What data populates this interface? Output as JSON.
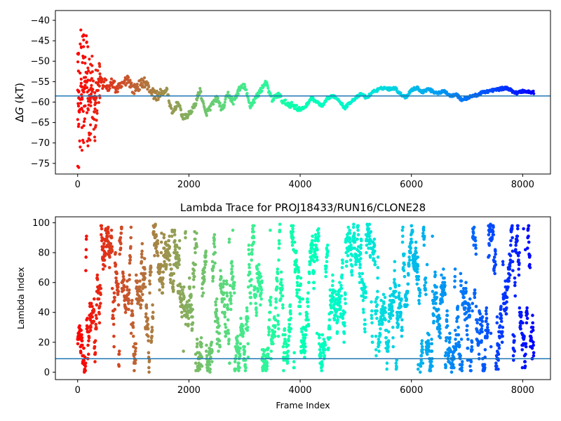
{
  "chart_data": [
    {
      "type": "scatter",
      "title": "",
      "xlabel": "",
      "ylabel": "ΔG (kT)",
      "ylabel_parts": {
        "delta": "Δ",
        "italic": "G",
        "unit": " (kT)"
      },
      "xlim": [
        -400,
        8500
      ],
      "ylim": [
        -77.6,
        -37.6
      ],
      "xticks": [
        0,
        2000,
        4000,
        6000,
        8000
      ],
      "xtick_labels": [
        "0",
        "2000",
        "4000",
        "6000",
        "8000"
      ],
      "yticks": [
        -40,
        -45,
        -50,
        -55,
        -60,
        -65,
        -70,
        -75
      ],
      "ytick_labels": [
        "−40",
        "−45",
        "−50",
        "−55",
        "−60",
        "−65",
        "−70",
        "−75"
      ],
      "hline": {
        "y": -58.5,
        "color": "#1f77b4"
      },
      "colormap": "rainbow (red at frame 0 to violet at frame 8200)",
      "frame_count": 8200,
      "trace_points": [
        [
          0,
          -58
        ],
        [
          30,
          -64
        ],
        [
          60,
          -55
        ],
        [
          100,
          -58
        ],
        [
          150,
          -54
        ],
        [
          200,
          -60
        ],
        [
          260,
          -56
        ],
        [
          300,
          -62
        ],
        [
          350,
          -57
        ],
        [
          400,
          -53
        ],
        [
          450,
          -56
        ],
        [
          500,
          -55
        ],
        [
          560,
          -57
        ],
        [
          620,
          -55
        ],
        [
          700,
          -57
        ],
        [
          800,
          -56
        ],
        [
          900,
          -54
        ],
        [
          1000,
          -57
        ],
        [
          1100,
          -56
        ],
        [
          1200,
          -55
        ],
        [
          1300,
          -57
        ],
        [
          1400,
          -58.5
        ],
        [
          1500,
          -58
        ],
        [
          1600,
          -57
        ],
        [
          1700,
          -63
        ],
        [
          1800,
          -60
        ],
        [
          1900,
          -64
        ],
        [
          2000,
          -63
        ],
        [
          2100,
          -61
        ],
        [
          2200,
          -57
        ],
        [
          2300,
          -63
        ],
        [
          2400,
          -61
        ],
        [
          2500,
          -59
        ],
        [
          2600,
          -62
        ],
        [
          2700,
          -58
        ],
        [
          2800,
          -60
        ],
        [
          2900,
          -57
        ],
        [
          3000,
          -56
        ],
        [
          3100,
          -61
        ],
        [
          3200,
          -59
        ],
        [
          3300,
          -57
        ],
        [
          3380,
          -55
        ],
        [
          3450,
          -58
        ],
        [
          3500,
          -59.5
        ],
        [
          3600,
          -58
        ],
        [
          3700,
          -60
        ],
        [
          3800,
          -60.5
        ],
        [
          3900,
          -61
        ],
        [
          4000,
          -62
        ],
        [
          4100,
          -61
        ],
        [
          4200,
          -59
        ],
        [
          4300,
          -60
        ],
        [
          4400,
          -61
        ],
        [
          4500,
          -59
        ],
        [
          4600,
          -58.5
        ],
        [
          4700,
          -59.5
        ],
        [
          4800,
          -61.5
        ],
        [
          4900,
          -60
        ],
        [
          5000,
          -59
        ],
        [
          5100,
          -58
        ],
        [
          5200,
          -59
        ],
        [
          5300,
          -57.5
        ],
        [
          5400,
          -57
        ],
        [
          5500,
          -56.5
        ],
        [
          5600,
          -56.8
        ],
        [
          5700,
          -56.5
        ],
        [
          5800,
          -58
        ],
        [
          5900,
          -58.8
        ],
        [
          6000,
          -57
        ],
        [
          6100,
          -56.5
        ],
        [
          6200,
          -57.5
        ],
        [
          6300,
          -56.8
        ],
        [
          6400,
          -57.5
        ],
        [
          6500,
          -57.8
        ],
        [
          6600,
          -57.3
        ],
        [
          6700,
          -58.5
        ],
        [
          6800,
          -58
        ],
        [
          6900,
          -59.5
        ],
        [
          7000,
          -59
        ],
        [
          7100,
          -58.5
        ],
        [
          7200,
          -58.2
        ],
        [
          7300,
          -57.5
        ],
        [
          7400,
          -57.3
        ],
        [
          7500,
          -57
        ],
        [
          7600,
          -56.8
        ],
        [
          7700,
          -56.5
        ],
        [
          7800,
          -57.2
        ],
        [
          7900,
          -57.8
        ],
        [
          8000,
          -57.3
        ],
        [
          8100,
          -57.5
        ],
        [
          8200,
          -57.6
        ]
      ],
      "early_scatter": {
        "x_range": [
          0,
          400
        ],
        "y_min": -76,
        "y_max": -39.5
      }
    },
    {
      "type": "scatter",
      "title": "Lambda Trace for PROJ18433/RUN16/CLONE28",
      "xlabel": "Frame Index",
      "ylabel": "Lambda Index",
      "xlim": [
        -400,
        8500
      ],
      "ylim": [
        -5,
        104
      ],
      "xticks": [
        0,
        2000,
        4000,
        6000,
        8000
      ],
      "xtick_labels": [
        "0",
        "2000",
        "4000",
        "6000",
        "8000"
      ],
      "yticks": [
        0,
        20,
        40,
        60,
        80,
        100
      ],
      "ytick_labels": [
        "0",
        "20",
        "40",
        "60",
        "80",
        "100"
      ],
      "hline": {
        "y": 9,
        "color": "#1f77b4"
      },
      "colormap": "rainbow (red at frame 0 to violet at frame 8200)",
      "frame_count": 8200,
      "lambda_range": [
        0,
        99
      ]
    }
  ]
}
